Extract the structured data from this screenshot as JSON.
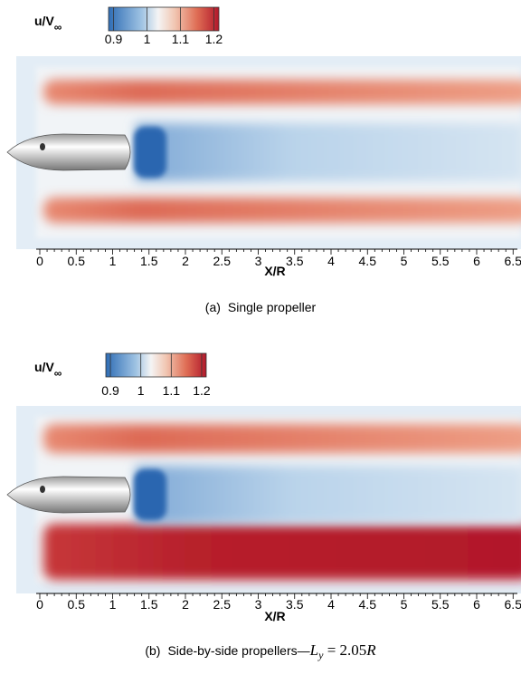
{
  "panels": [
    {
      "legend": {
        "title": "u/V",
        "subscript": "∞",
        "ticks": [
          0.9,
          1,
          1.1,
          1.2
        ]
      },
      "x_ticks": [
        0,
        0.5,
        1,
        1.5,
        2,
        2.5,
        3,
        3.5,
        4,
        4.5,
        5,
        5.5,
        6,
        6.5
      ],
      "x_label": "X/R",
      "caption": {
        "label": "(a)",
        "text": "Single propeller"
      }
    },
    {
      "legend": {
        "title": "u/V",
        "subscript": "∞",
        "ticks": [
          0.9,
          1,
          1.1,
          1.2
        ]
      },
      "x_ticks": [
        0,
        0.5,
        1,
        1.5,
        2,
        2.5,
        3,
        3.5,
        4,
        4.5,
        5,
        5.5,
        6,
        6.5
      ],
      "x_label": "X/R",
      "caption": {
        "label": "(b)",
        "text": "Side-by-side propellers—",
        "math": {
          "var": "L",
          "sub": "y",
          "rest": " = 2.05",
          "var2": "R"
        }
      }
    }
  ]
}
